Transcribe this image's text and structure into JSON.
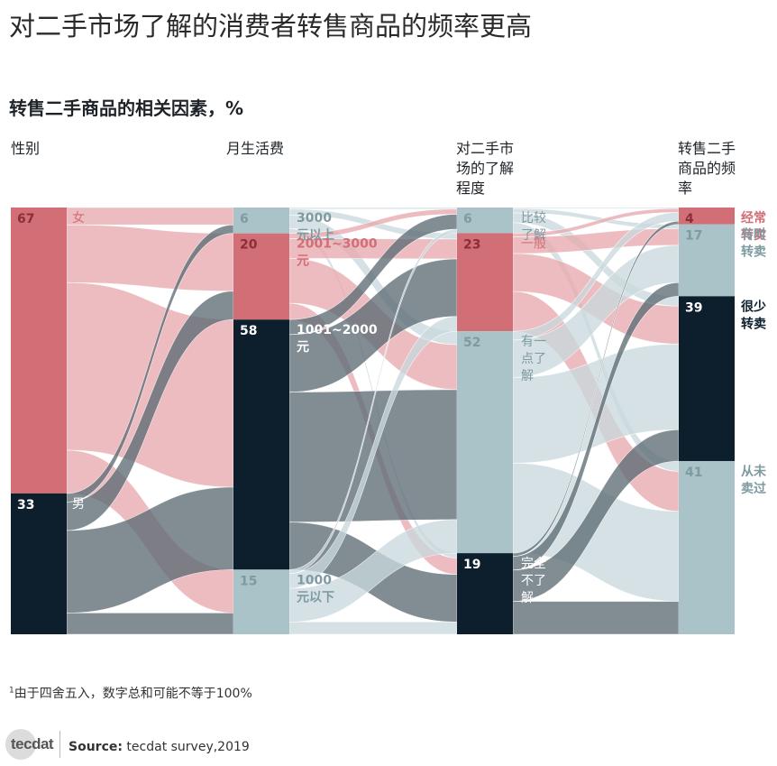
{
  "title": "对二手市场了解的消费者转售商品的频率更高",
  "subtitle": "转售二手商品的相关因素，%",
  "columns": [
    {
      "lines": [
        "性别"
      ]
    },
    {
      "lines": [
        "月生活费"
      ]
    },
    {
      "lines": [
        "对二手市",
        "场的了解",
        "程度"
      ]
    },
    {
      "lines": [
        "转售二手",
        "商品的频",
        "率"
      ]
    }
  ],
  "footnote": "由于四舍五入，数字总和可能不等于100%",
  "footnote_marker": "1",
  "source_label": "Source:",
  "source_text": "tecdat survey,2019",
  "logo_text": "tecdat",
  "colors": {
    "red": "#d16e76",
    "navy": "#0d1f2d",
    "lightblue": "#a9c3c8",
    "redflow": "#e7a9ae",
    "navyflow": "#5d6b75",
    "blueflow": "#c9d9dc"
  },
  "chart_data": {
    "type": "sankey",
    "title": "对二手市场了解的消费者转售商品的频率更高",
    "subtitle": "转售二手商品的相关因素，%",
    "stages": [
      {
        "name": "性别",
        "nodes": [
          {
            "label": "女",
            "value": 67,
            "color": "red"
          },
          {
            "label": "男",
            "value": 33,
            "color": "navy"
          }
        ]
      },
      {
        "name": "月生活费",
        "nodes": [
          {
            "label": "3000元以上",
            "value": 6,
            "color": "lightblue"
          },
          {
            "label": "2001~3000元",
            "value": 20,
            "color": "red"
          },
          {
            "label": "1001~2000元",
            "value": 58,
            "color": "navy"
          },
          {
            "label": "1000元以下",
            "value": 15,
            "color": "lightblue"
          }
        ]
      },
      {
        "name": "对二手市场的了解程度",
        "nodes": [
          {
            "label": "比较了解",
            "value": 6,
            "color": "lightblue"
          },
          {
            "label": "一般",
            "value": 23,
            "color": "red"
          },
          {
            "label": "有一点了解",
            "value": 52,
            "color": "lightblue"
          },
          {
            "label": "完全不了解",
            "value": 19,
            "color": "navy"
          }
        ]
      },
      {
        "name": "转售二手商品的频率",
        "nodes": [
          {
            "label": "经常转卖",
            "value": 4,
            "color": "red"
          },
          {
            "label": "有时转卖",
            "value": 17,
            "color": "lightblue"
          },
          {
            "label": "很少转卖",
            "value": 39,
            "color": "navy"
          },
          {
            "label": "从未卖过",
            "value": 41,
            "color": "lightblue"
          }
        ]
      }
    ]
  }
}
